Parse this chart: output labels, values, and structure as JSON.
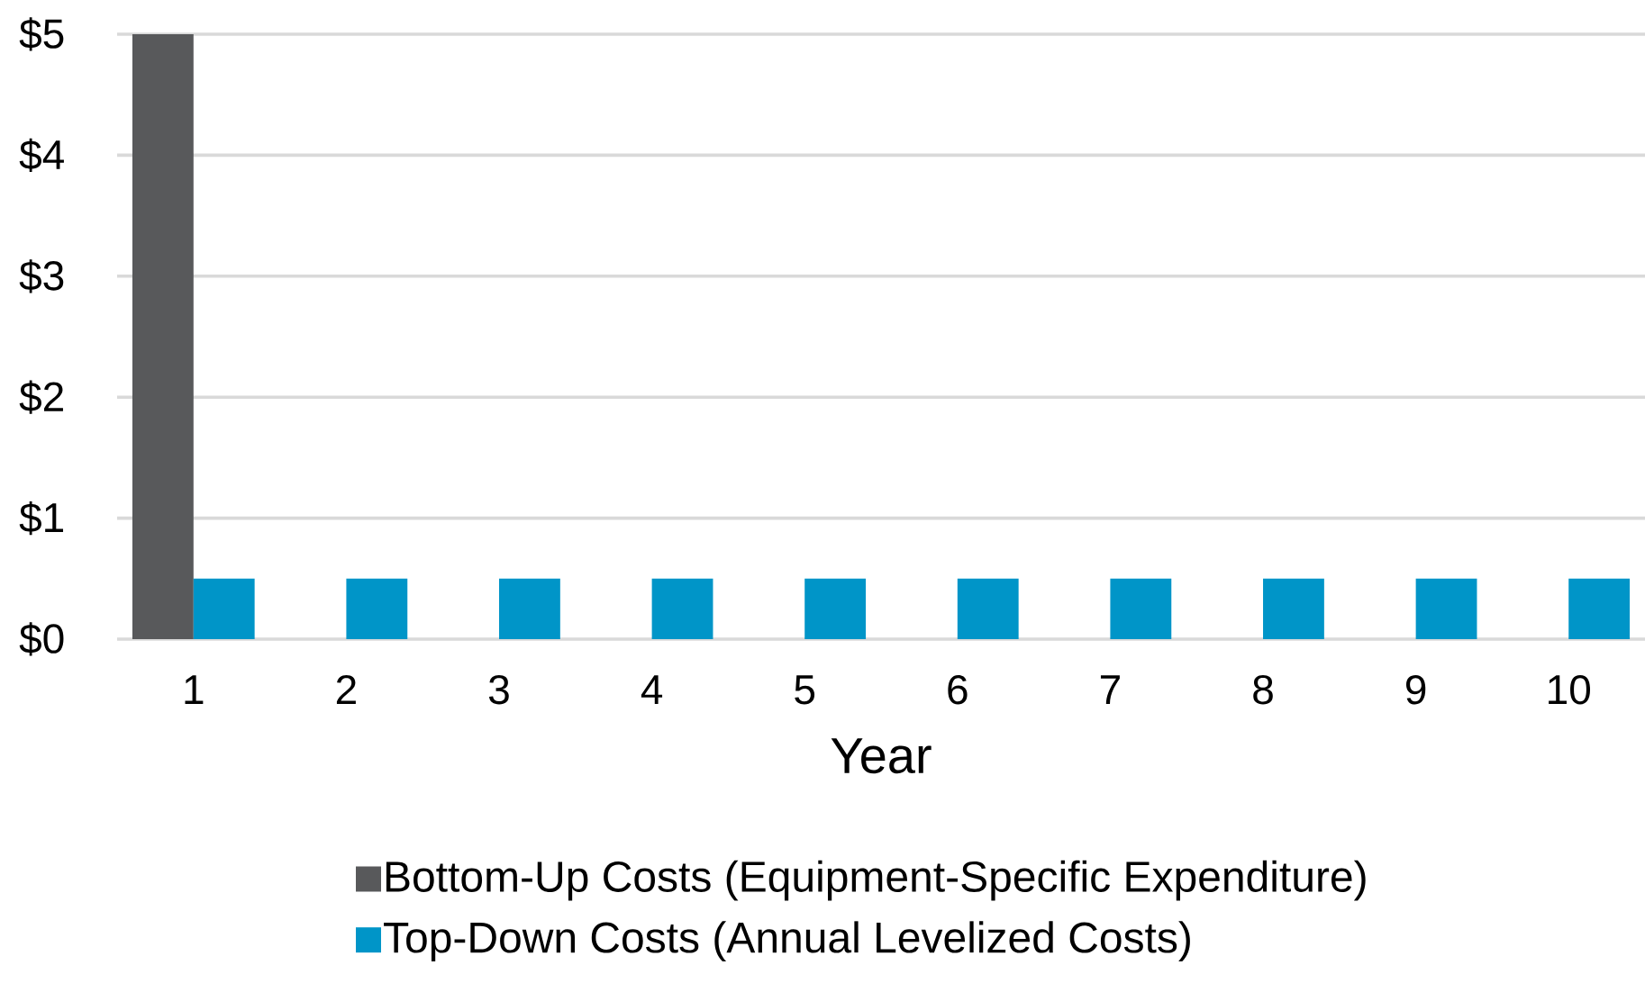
{
  "chart_data": {
    "type": "bar",
    "categories": [
      "1",
      "2",
      "3",
      "4",
      "5",
      "6",
      "7",
      "8",
      "9",
      "10"
    ],
    "series": [
      {
        "name": "Bottom-Up Costs (Equipment-Specific Expenditure)",
        "color": "#58595b",
        "values": [
          5,
          null,
          null,
          null,
          null,
          null,
          null,
          null,
          null,
          null
        ]
      },
      {
        "name": "Top-Down Costs  (Annual Levelized Costs)",
        "color": "#0095c8",
        "values": [
          0.5,
          0.5,
          0.5,
          0.5,
          0.5,
          0.5,
          0.5,
          0.5,
          0.5,
          0.5
        ]
      }
    ],
    "xlabel": "Year",
    "ylim": [
      0,
      5
    ],
    "yticks": [
      {
        "value": 0,
        "label": "$0"
      },
      {
        "value": 1,
        "label": "$1"
      },
      {
        "value": 2,
        "label": "$2"
      },
      {
        "value": 3,
        "label": "$3"
      },
      {
        "value": 4,
        "label": "$4"
      },
      {
        "value": 5,
        "label": "$5"
      }
    ],
    "grid": "y",
    "legend": "bottom"
  }
}
